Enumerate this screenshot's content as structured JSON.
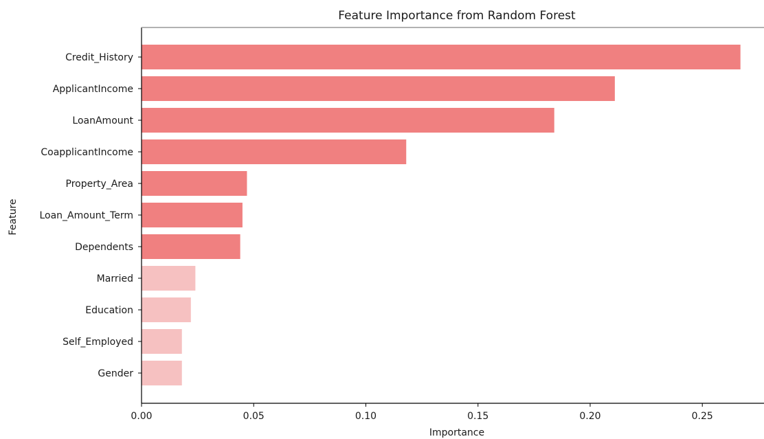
{
  "chart_data": {
    "type": "bar",
    "orientation": "horizontal",
    "title": "Feature Importance from Random Forest",
    "xlabel": "Importance",
    "ylabel": "Feature",
    "xlim": [
      0,
      0.2775
    ],
    "xticks": [
      0.0,
      0.05,
      0.1,
      0.15,
      0.2,
      0.25
    ],
    "xtick_labels": [
      "0.00",
      "0.05",
      "0.10",
      "0.15",
      "0.20",
      "0.25"
    ],
    "categories": [
      "Credit_History",
      "ApplicantIncome",
      "LoanAmount",
      "CoapplicantIncome",
      "Property_Area",
      "Loan_Amount_Term",
      "Dependents",
      "Married",
      "Education",
      "Self_Employed",
      "Gender"
    ],
    "values": [
      0.267,
      0.211,
      0.184,
      0.118,
      0.047,
      0.045,
      0.044,
      0.024,
      0.022,
      0.018,
      0.018
    ],
    "bar_colors": [
      "#f08080",
      "#f08080",
      "#f08080",
      "#f08080",
      "#f08080",
      "#f08080",
      "#f08080",
      "#f6c1c1",
      "#f6c1c1",
      "#f6c1c1",
      "#f6c1c1"
    ],
    "grid": false,
    "legend": "none"
  }
}
